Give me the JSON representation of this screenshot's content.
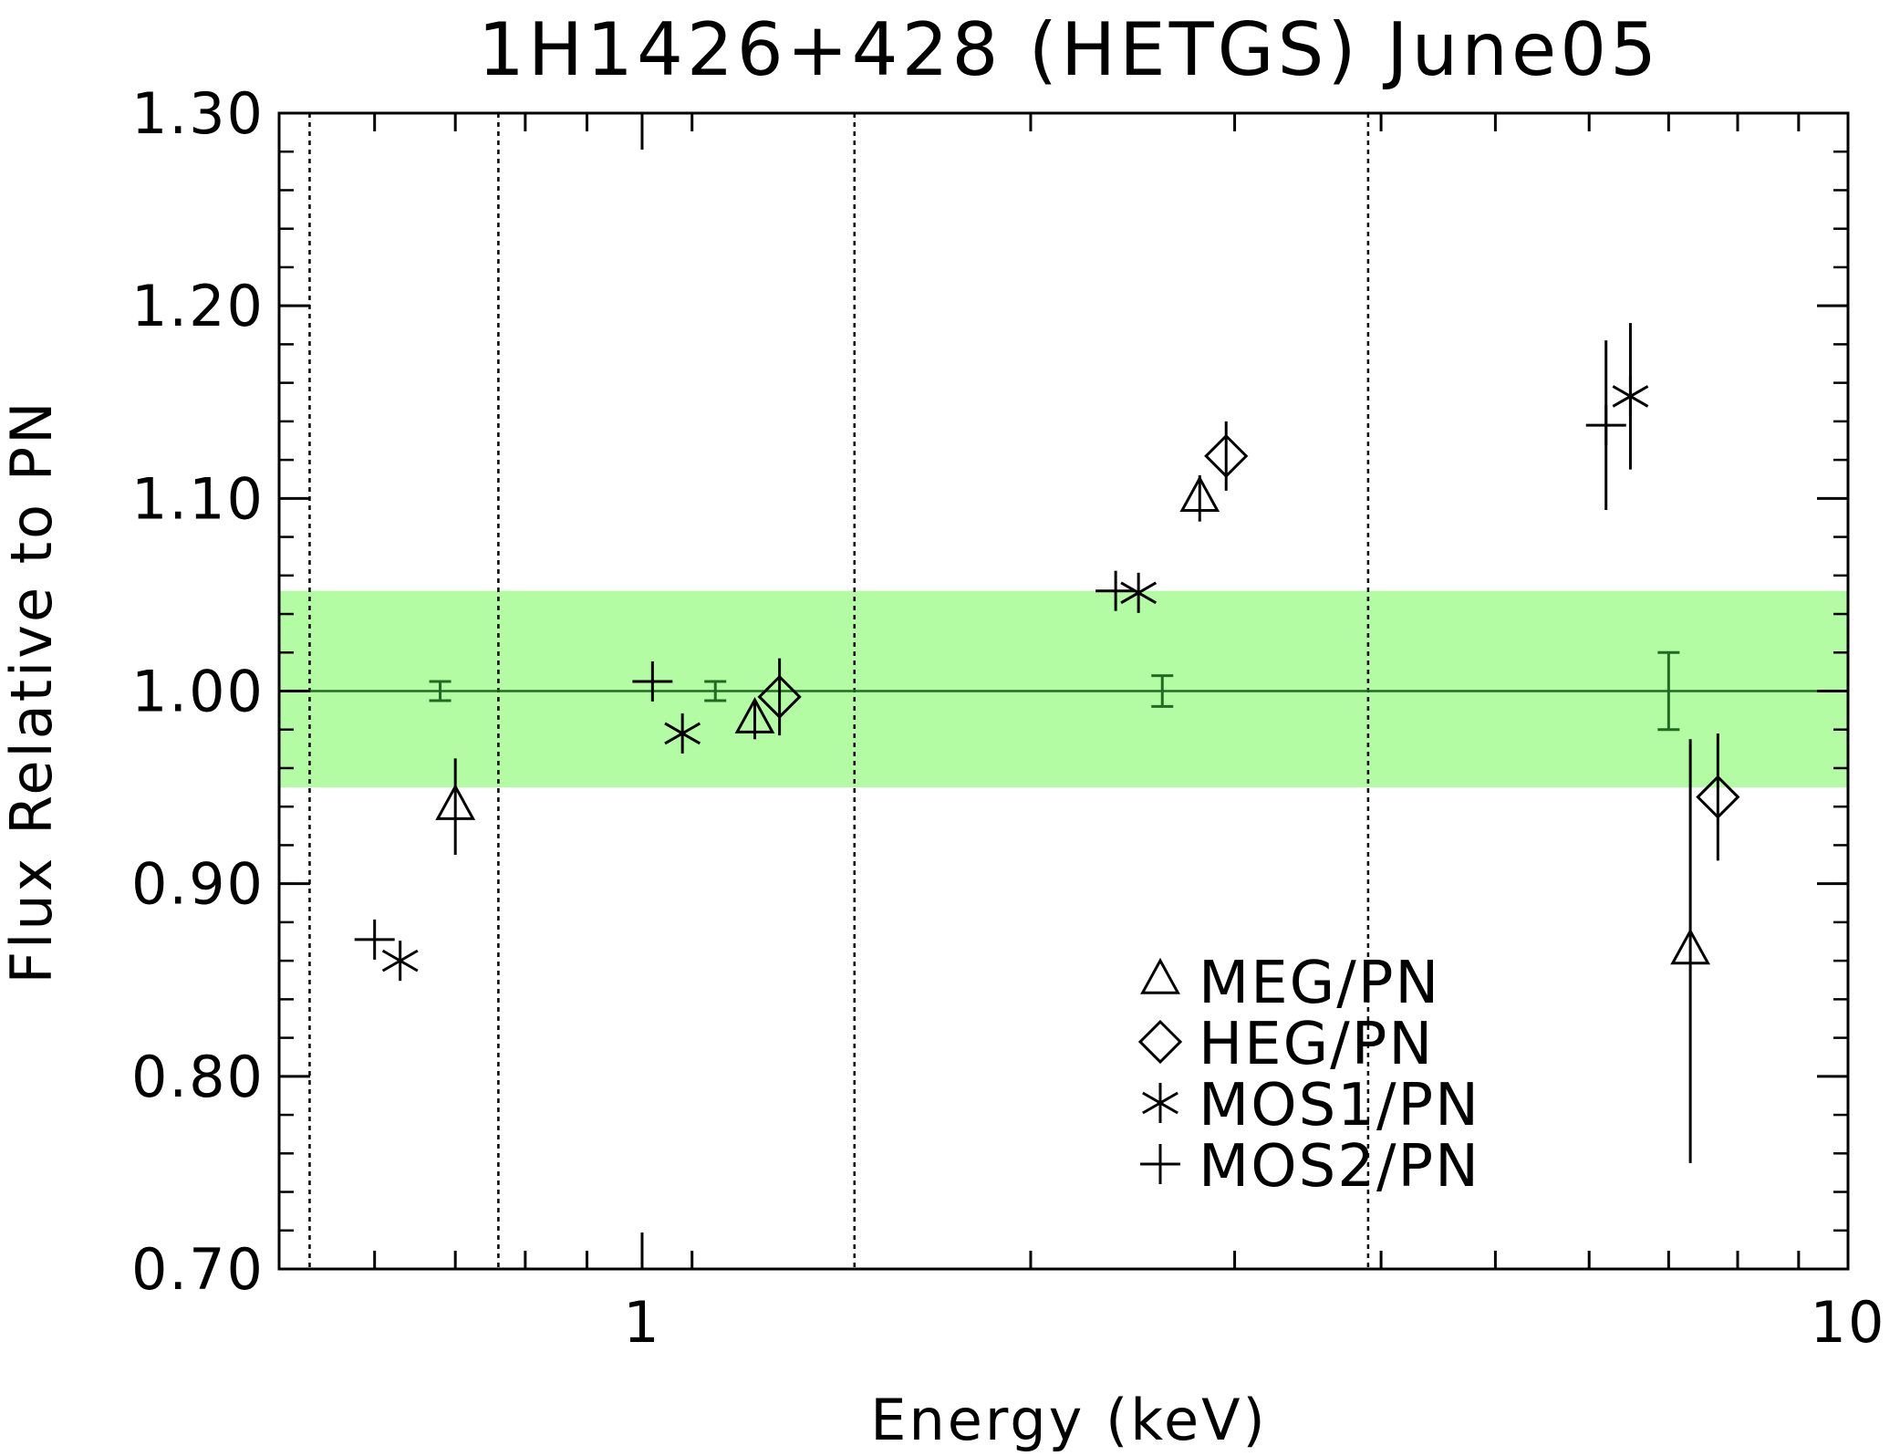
{
  "chart_data": {
    "type": "scatter",
    "title": "1H1426+428 (HETGS) June05",
    "xlabel": "Energy (keV)",
    "ylabel": "Flux Relative to PN",
    "x_scale": "log",
    "xlim": [
      0.5,
      10
    ],
    "ylim": [
      0.7,
      1.3
    ],
    "x_tick_values": [
      1,
      10
    ],
    "x_tick_labels": [
      "1",
      "10"
    ],
    "y_tick_values": [
      0.7,
      0.8,
      0.9,
      1.0,
      1.1,
      1.2,
      1.3
    ],
    "y_tick_labels": [
      "0.70",
      "0.80",
      "0.90",
      "1.00",
      "1.10",
      "1.20",
      "1.30"
    ],
    "band": {
      "y_low": 0.95,
      "y_high": 1.052,
      "color": "#b4fca4"
    },
    "reference_line": {
      "y": 1.0,
      "color": "#1f6b1f"
    },
    "vertical_lines": [
      0.53,
      0.76,
      1.5,
      4.0
    ],
    "reference_points": [
      {
        "x": 0.68,
        "y": 1.0,
        "err": 0.005
      },
      {
        "x": 1.15,
        "y": 1.0,
        "err": 0.005
      },
      {
        "x": 2.7,
        "y": 1.0,
        "err": 0.008
      },
      {
        "x": 7.1,
        "y": 1.0,
        "err": 0.02
      }
    ],
    "series": [
      {
        "name": "MEG/PN",
        "marker": "triangle",
        "points": [
          {
            "x": 0.7,
            "y": 0.94,
            "err": 0.025
          },
          {
            "x": 1.24,
            "y": 0.985,
            "err": 0.01
          },
          {
            "x": 2.9,
            "y": 1.1,
            "err": 0.012
          },
          {
            "x": 7.4,
            "y": 0.865,
            "err": 0.11
          }
        ]
      },
      {
        "name": "HEG/PN",
        "marker": "diamond",
        "points": [
          {
            "x": 1.3,
            "y": 0.997,
            "err": 0.02
          },
          {
            "x": 3.05,
            "y": 1.122,
            "err": 0.018
          },
          {
            "x": 7.8,
            "y": 0.945,
            "err": 0.033
          }
        ]
      },
      {
        "name": "MOS1/PN",
        "marker": "asterisk",
        "points": [
          {
            "x": 0.63,
            "y": 0.86,
            "err": 0
          },
          {
            "x": 1.08,
            "y": 0.978,
            "err": 0
          },
          {
            "x": 2.58,
            "y": 1.051,
            "err": 0
          },
          {
            "x": 6.6,
            "y": 1.153,
            "err": 0.038
          }
        ]
      },
      {
        "name": "MOS2/PN",
        "marker": "plus",
        "points": [
          {
            "x": 0.6,
            "y": 0.871,
            "err": 0
          },
          {
            "x": 1.02,
            "y": 1.005,
            "err": 0
          },
          {
            "x": 2.47,
            "y": 1.052,
            "err": 0
          },
          {
            "x": 6.3,
            "y": 1.138,
            "err": 0.044
          }
        ]
      }
    ],
    "legend_position": "lower-center-right"
  }
}
